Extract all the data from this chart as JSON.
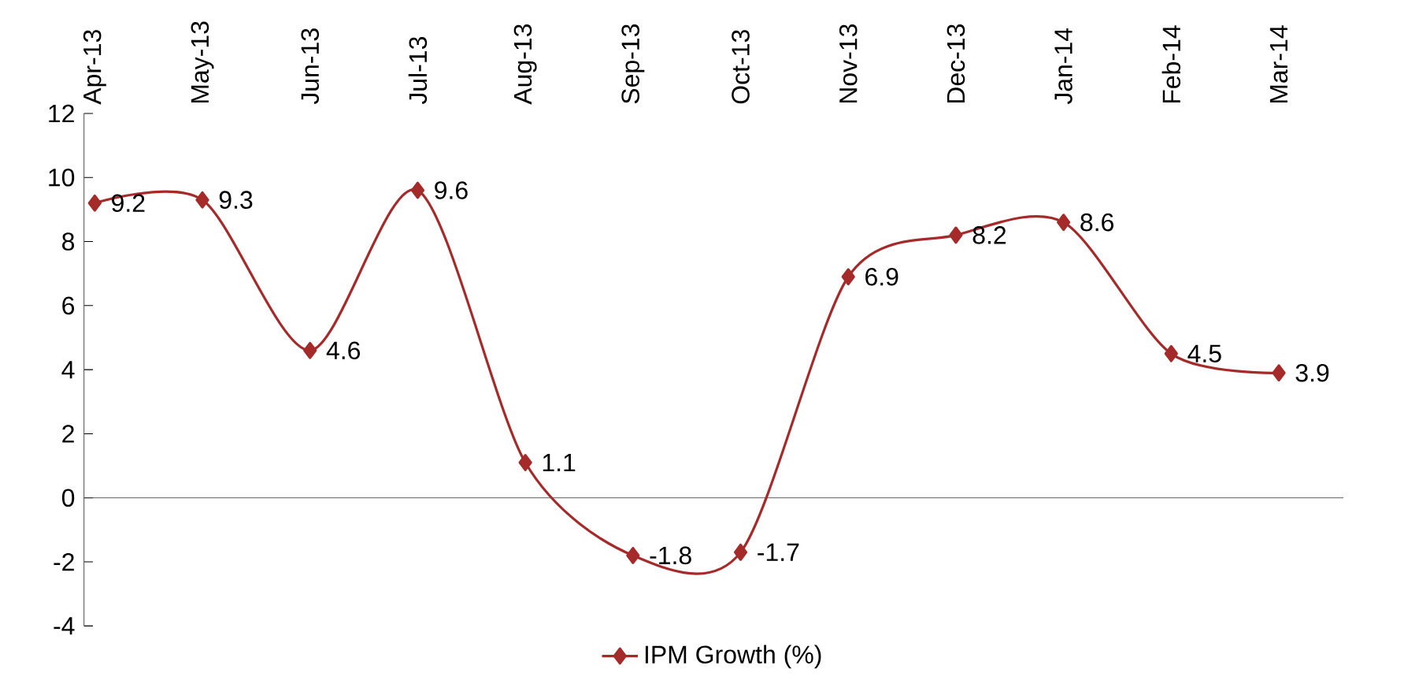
{
  "chart_data": {
    "type": "line",
    "categories": [
      "Apr-13",
      "May-13",
      "Jun-13",
      "Jul-13",
      "Aug-13",
      "Sep-13",
      "Oct-13",
      "Nov-13",
      "Dec-13",
      "Jan-14",
      "Feb-14",
      "Mar-14"
    ],
    "series": [
      {
        "name": "IPM Growth (%)",
        "color": "#a52a2a",
        "values": [
          9.2,
          9.3,
          4.6,
          9.6,
          1.1,
          -1.8,
          -1.7,
          6.9,
          8.2,
          8.6,
          4.5,
          3.9
        ]
      }
    ],
    "ylim": [
      -4,
      12
    ],
    "yticks": [
      -4,
      -2,
      0,
      2,
      4,
      6,
      8,
      10,
      12
    ],
    "data_labels": true,
    "legend": "bottom",
    "marker": "diamond",
    "line_style": "solid"
  }
}
